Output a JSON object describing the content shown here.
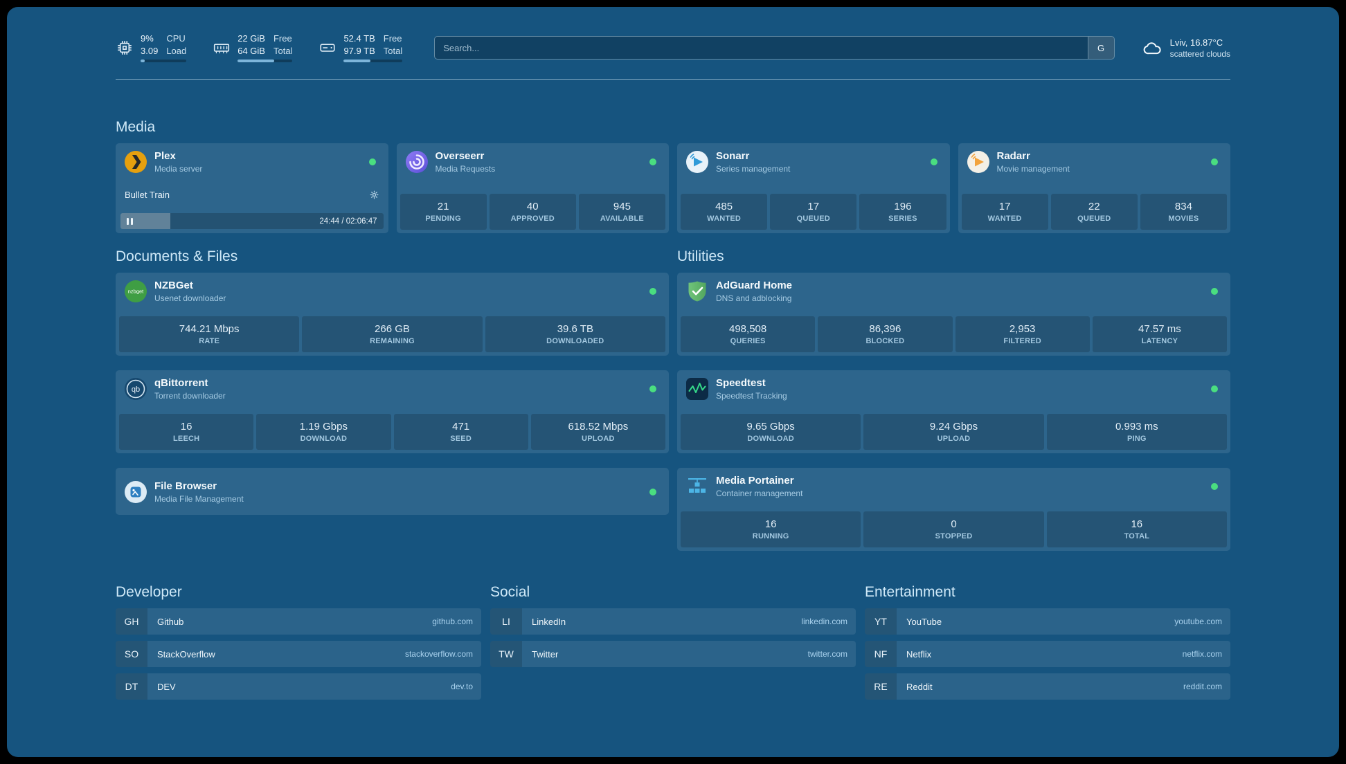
{
  "theme": {
    "background": "#16547f",
    "card": "#2e6c96",
    "accent": "#7db5da",
    "status_online": "#4ade80"
  },
  "topbar": {
    "resources": [
      {
        "icon": "cpu-icon",
        "values": [
          "9%",
          "3.09"
        ],
        "labels": [
          "CPU",
          "Load"
        ],
        "bar_percent": 9
      },
      {
        "icon": "memory-icon",
        "values": [
          "22 GiB",
          "64 GiB"
        ],
        "labels": [
          "Free",
          "Total"
        ],
        "bar_percent": 66
      },
      {
        "icon": "disk-icon",
        "values": [
          "52.4 TB",
          "97.9 TB"
        ],
        "labels": [
          "Free",
          "Total"
        ],
        "bar_percent": 46
      }
    ],
    "search": {
      "placeholder": "Search...",
      "provider_button": "G"
    },
    "weather": {
      "icon": "cloud-icon",
      "location": "Lviv, 16.87°C",
      "condition": "scattered clouds"
    }
  },
  "sections": {
    "media": {
      "title": "Media",
      "plex": {
        "icon": "plex-icon",
        "name": "Plex",
        "subtitle": "Media server",
        "status": "online",
        "now_playing": "Bullet Train",
        "progress_percent": 19,
        "time": "24:44 / 02:06:47"
      },
      "overseerr": {
        "icon": "overseerr-icon",
        "name": "Overseerr",
        "subtitle": "Media Requests",
        "status": "online",
        "stats": [
          {
            "value": "21",
            "label": "PENDING"
          },
          {
            "value": "40",
            "label": "APPROVED"
          },
          {
            "value": "945",
            "label": "AVAILABLE"
          }
        ]
      },
      "sonarr": {
        "icon": "sonarr-icon",
        "name": "Sonarr",
        "subtitle": "Series management",
        "status": "online",
        "stats": [
          {
            "value": "485",
            "label": "WANTED"
          },
          {
            "value": "17",
            "label": "QUEUED"
          },
          {
            "value": "196",
            "label": "SERIES"
          }
        ]
      },
      "radarr": {
        "icon": "radarr-icon",
        "name": "Radarr",
        "subtitle": "Movie management",
        "status": "online",
        "stats": [
          {
            "value": "17",
            "label": "WANTED"
          },
          {
            "value": "22",
            "label": "QUEUED"
          },
          {
            "value": "834",
            "label": "MOVIES"
          }
        ]
      }
    },
    "documents": {
      "title": "Documents & Files",
      "nzbget": {
        "icon": "nzbget-icon",
        "name": "NZBGet",
        "subtitle": "Usenet downloader",
        "status": "online",
        "stats": [
          {
            "value": "744.21 Mbps",
            "label": "RATE"
          },
          {
            "value": "266 GB",
            "label": "REMAINING"
          },
          {
            "value": "39.6 TB",
            "label": "DOWNLOADED"
          }
        ]
      },
      "qbittorrent": {
        "icon": "qbittorrent-icon",
        "name": "qBittorrent",
        "subtitle": "Torrent downloader",
        "status": "online",
        "stats": [
          {
            "value": "16",
            "label": "LEECH"
          },
          {
            "value": "1.19 Gbps",
            "label": "DOWNLOAD"
          },
          {
            "value": "471",
            "label": "SEED"
          },
          {
            "value": "618.52 Mbps",
            "label": "UPLOAD"
          }
        ]
      },
      "filebrowser": {
        "icon": "filebrowser-icon",
        "name": "File Browser",
        "subtitle": "Media File Management",
        "status": "online"
      }
    },
    "utilities": {
      "title": "Utilities",
      "adguard": {
        "icon": "adguard-icon",
        "name": "AdGuard Home",
        "subtitle": "DNS and adblocking",
        "status": "online",
        "stats": [
          {
            "value": "498,508",
            "label": "QUERIES"
          },
          {
            "value": "86,396",
            "label": "BLOCKED"
          },
          {
            "value": "2,953",
            "label": "FILTERED"
          },
          {
            "value": "47.57 ms",
            "label": "LATENCY"
          }
        ]
      },
      "speedtest": {
        "icon": "speedtest-icon",
        "name": "Speedtest",
        "subtitle": "Speedtest Tracking",
        "status": "online",
        "stats": [
          {
            "value": "9.65 Gbps",
            "label": "DOWNLOAD"
          },
          {
            "value": "9.24 Gbps",
            "label": "UPLOAD"
          },
          {
            "value": "0.993 ms",
            "label": "PING"
          }
        ]
      },
      "portainer": {
        "icon": "portainer-icon",
        "name": "Media Portainer",
        "subtitle": "Container management",
        "status": "online",
        "stats": [
          {
            "value": "16",
            "label": "RUNNING"
          },
          {
            "value": "0",
            "label": "STOPPED"
          },
          {
            "value": "16",
            "label": "TOTAL"
          }
        ]
      }
    }
  },
  "bookmarks": [
    {
      "title": "Developer",
      "items": [
        {
          "abbr": "GH",
          "name": "Github",
          "url": "github.com"
        },
        {
          "abbr": "SO",
          "name": "StackOverflow",
          "url": "stackoverflow.com"
        },
        {
          "abbr": "DT",
          "name": "DEV",
          "url": "dev.to"
        }
      ]
    },
    {
      "title": "Social",
      "items": [
        {
          "abbr": "LI",
          "name": "LinkedIn",
          "url": "linkedin.com"
        },
        {
          "abbr": "TW",
          "name": "Twitter",
          "url": "twitter.com"
        }
      ]
    },
    {
      "title": "Entertainment",
      "items": [
        {
          "abbr": "YT",
          "name": "YouTube",
          "url": "youtube.com"
        },
        {
          "abbr": "NF",
          "name": "Netflix",
          "url": "netflix.com"
        },
        {
          "abbr": "RE",
          "name": "Reddit",
          "url": "reddit.com"
        }
      ]
    }
  ]
}
